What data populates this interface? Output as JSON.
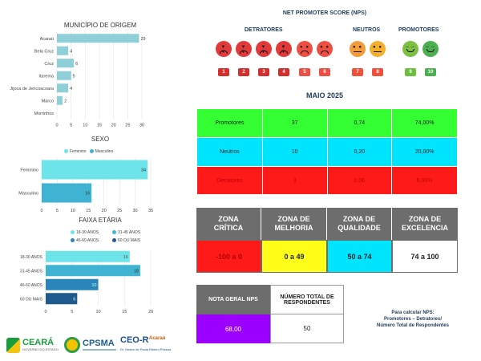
{
  "origin_chart": {
    "title": "MUNICÍPIO DE ORIGEM",
    "categories": [
      "Acaraú",
      "Bela Cruz",
      "Cruz",
      "Itarema",
      "Jijoca de Jericoacoara",
      "Marco",
      "Morrinhos"
    ],
    "values": [
      29,
      4,
      6,
      5,
      4,
      2,
      0
    ],
    "ticks": [
      "0",
      "5",
      "10",
      "15",
      "20",
      "25",
      "30"
    ]
  },
  "sex_chart": {
    "title": "SEXO",
    "legend": [
      "Feminino",
      "Masculino"
    ],
    "categories": [
      "Feminino",
      "Masculino"
    ],
    "values": [
      34,
      16
    ],
    "ticks": [
      "0",
      "5",
      "10",
      "15",
      "20",
      "25",
      "30",
      "35"
    ]
  },
  "age_chart": {
    "title": "FAIXA ETÁRIA",
    "legend": [
      "18-30 ANOS",
      "31-45 ANOS",
      "46-60 ANOS",
      "60 OU MAIS"
    ],
    "categories": [
      "18-30 ANOS",
      "31-45 ANOS",
      "46-60 ANOS",
      "60 OU MAIS"
    ],
    "values": [
      16,
      18,
      10,
      6
    ],
    "ticks": [
      "0",
      "5",
      "10",
      "15",
      "20"
    ]
  },
  "chart_data": [
    {
      "type": "bar",
      "orientation": "horizontal",
      "title": "MUNICÍPIO DE ORIGEM",
      "categories": [
        "Acaraú",
        "Bela Cruz",
        "Cruz",
        "Itarema",
        "Jijoca de Jericoacoara",
        "Marco",
        "Morrinhos"
      ],
      "values": [
        29,
        4,
        6,
        5,
        4,
        2,
        0
      ],
      "xlim": [
        0,
        30
      ],
      "color": "#8ecfd8"
    },
    {
      "type": "bar",
      "orientation": "horizontal",
      "title": "SEXO",
      "categories": [
        "Feminino",
        "Masculino"
      ],
      "values": [
        34,
        16
      ],
      "xlim": [
        0,
        35
      ],
      "legend": [
        "Feminino",
        "Masculino"
      ],
      "legend_position": "top"
    },
    {
      "type": "bar",
      "orientation": "horizontal",
      "title": "FAIXA ETÁRIA",
      "categories": [
        "18-30 ANOS",
        "31-45 ANOS",
        "46-60 ANOS",
        "60 OU MAIS"
      ],
      "values": [
        16,
        18,
        10,
        6
      ],
      "xlim": [
        0,
        20
      ],
      "legend": [
        "18-30 ANOS",
        "31-45 ANOS",
        "46-60 ANOS",
        "60 OU MAIS"
      ],
      "legend_position": "top"
    }
  ],
  "nps": {
    "title": "NET PROMOTER SCORE (NPS)",
    "detratores_label": "DETRATORES",
    "neutros_label": "NEUTROS",
    "promotores_label": "PROMOTORES",
    "scores": [
      "1",
      "2",
      "3",
      "4",
      "5",
      "6",
      "7",
      "8",
      "9",
      "10"
    ]
  },
  "period": "MAIO 2025",
  "results": {
    "rows": [
      {
        "label": "Promotores",
        "count": "37",
        "ratio": "0,74",
        "percent": "74,00%",
        "color": "#33ff33"
      },
      {
        "label": "Neutros",
        "count": "10",
        "ratio": "0,20",
        "percent": "20,00%",
        "color": "#00e5ff"
      },
      {
        "label": "Detratores",
        "count": "3",
        "ratio": "0,06",
        "percent": "6,00%",
        "color": "#ff1a1a"
      }
    ]
  },
  "zones": [
    {
      "title": "ZONA CRÍTICA",
      "range": "-100 a 0",
      "color": "#ff1a1a"
    },
    {
      "title": "ZONA DE MELHORIA",
      "range": "0 a 49",
      "color": "#ffff1a"
    },
    {
      "title": "ZONA DE QUALIDADE",
      "range": "50 a 74",
      "color": "#00e5ff"
    },
    {
      "title": "ZONA DE EXCELENCIA",
      "range": "74 a 100",
      "color": "#ffffff"
    }
  ],
  "summary": {
    "nps_label": "NOTA GERAL NPS",
    "nps_value": "68,00",
    "total_label": "NÚMERO TOTAL DE RESPONDENTES",
    "total_value": "50"
  },
  "formula": {
    "line1": "Para calcular NPS:",
    "line2": "Promotores – Detratores/",
    "line3": "Número Total de Respondentes"
  },
  "logos": {
    "ceara": "CEARÁ",
    "ceara_sub": "GOVERNO DO ESTADO",
    "cpsma": "CPSMA",
    "ceo": "CEO-R",
    "ceo_city": "Acaraú",
    "ceo_sub": "Dr. Nestor de Paula Ribeiro Pessoa"
  }
}
